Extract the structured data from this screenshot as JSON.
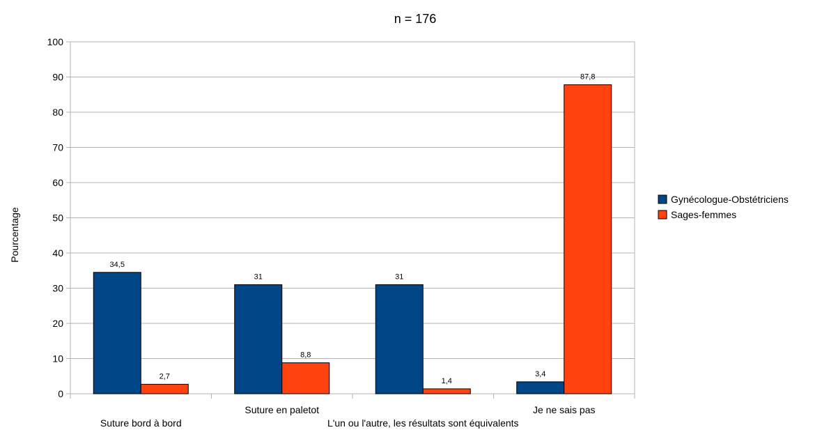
{
  "chart_data": {
    "type": "bar",
    "title": "n = 176",
    "xlabel": "",
    "ylabel": "Pourcentage",
    "ylim": [
      0,
      100
    ],
    "yticks": [
      0,
      10,
      20,
      30,
      40,
      50,
      60,
      70,
      80,
      90,
      100
    ],
    "grid": true,
    "legend_position": "right",
    "categories": [
      "Suture bord à bord",
      "Suture en paletot",
      "L'un ou l'autre, les résultats sont équivalents",
      "Je ne sais pas"
    ],
    "value_labels": [
      [
        "34,5",
        "31",
        "31",
        "3,4"
      ],
      [
        "2,7",
        "8,8",
        "1,4",
        "87,8"
      ]
    ],
    "series": [
      {
        "name": "Gynécologue-Obstétriciens",
        "color": "#004586",
        "values": [
          34.5,
          31,
          31,
          3.4
        ]
      },
      {
        "name": "Sages-femmes",
        "color": "#ff420e",
        "values": [
          2.7,
          8.8,
          1.4,
          87.8
        ]
      }
    ]
  }
}
